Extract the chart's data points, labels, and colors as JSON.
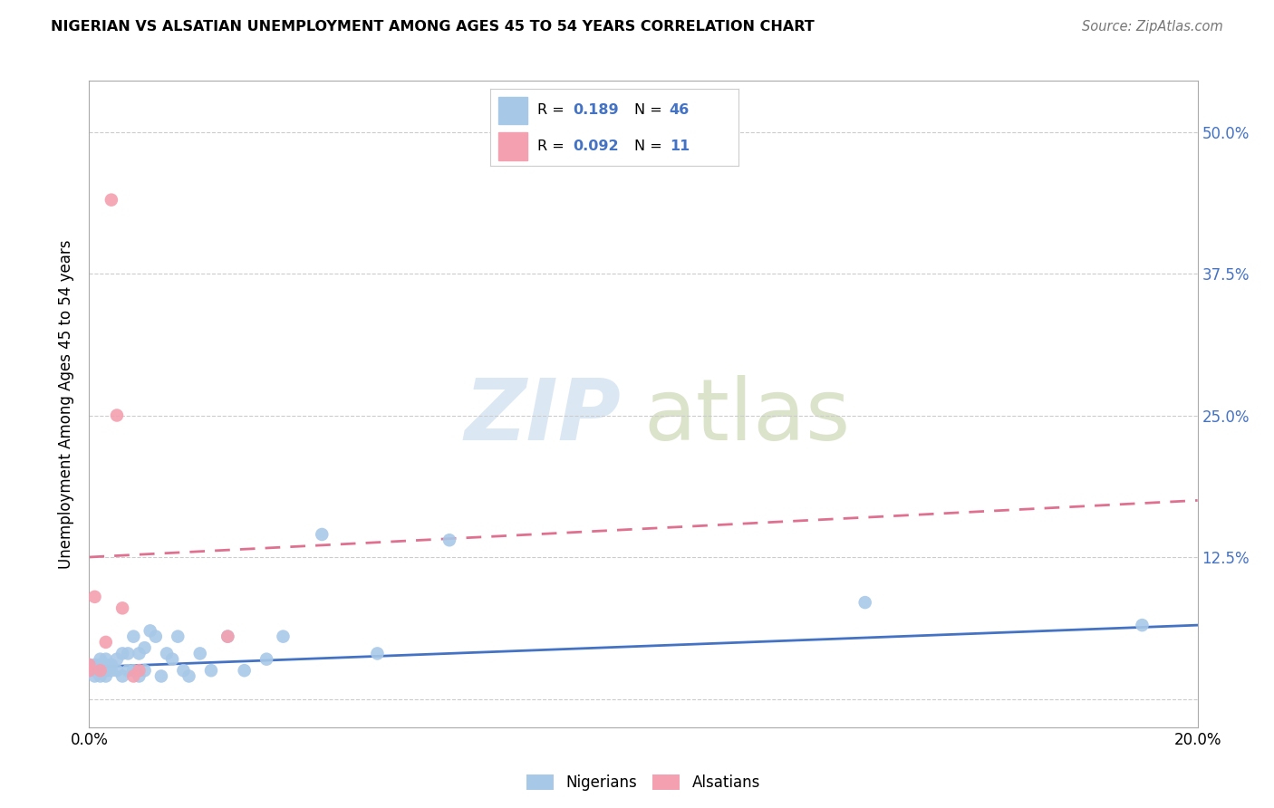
{
  "title": "NIGERIAN VS ALSATIAN UNEMPLOYMENT AMONG AGES 45 TO 54 YEARS CORRELATION CHART",
  "source": "Source: ZipAtlas.com",
  "ylabel": "Unemployment Among Ages 45 to 54 years",
  "xlim": [
    0.0,
    0.2
  ],
  "ylim": [
    -0.025,
    0.545
  ],
  "yticks": [
    0.0,
    0.125,
    0.25,
    0.375,
    0.5
  ],
  "ytick_labels_right": [
    "",
    "12.5%",
    "25.0%",
    "37.5%",
    "50.0%"
  ],
  "xticks": [
    0.0,
    0.025,
    0.05,
    0.075,
    0.1,
    0.125,
    0.15,
    0.175,
    0.2
  ],
  "xtick_labels": [
    "0.0%",
    "",
    "",
    "",
    "",
    "",
    "",
    "",
    "20.0%"
  ],
  "nigerian_color": "#a8c8e8",
  "alsatian_color": "#f4a0b0",
  "nigerian_line_color": "#4472c4",
  "alsatian_line_color": "#e07090",
  "nigerian_R": "0.189",
  "nigerian_N": "46",
  "alsatian_R": "0.092",
  "alsatian_N": "11",
  "nigerian_x": [
    0.0,
    0.0,
    0.001,
    0.001,
    0.001,
    0.002,
    0.002,
    0.002,
    0.002,
    0.003,
    0.003,
    0.003,
    0.003,
    0.004,
    0.004,
    0.005,
    0.005,
    0.006,
    0.006,
    0.007,
    0.007,
    0.008,
    0.008,
    0.009,
    0.009,
    0.01,
    0.01,
    0.011,
    0.012,
    0.013,
    0.014,
    0.015,
    0.016,
    0.017,
    0.018,
    0.02,
    0.022,
    0.025,
    0.028,
    0.032,
    0.035,
    0.042,
    0.052,
    0.065,
    0.14,
    0.19
  ],
  "nigerian_y": [
    0.025,
    0.03,
    0.02,
    0.025,
    0.03,
    0.02,
    0.025,
    0.03,
    0.035,
    0.02,
    0.025,
    0.03,
    0.035,
    0.025,
    0.03,
    0.025,
    0.035,
    0.02,
    0.04,
    0.025,
    0.04,
    0.025,
    0.055,
    0.02,
    0.04,
    0.025,
    0.045,
    0.06,
    0.055,
    0.02,
    0.04,
    0.035,
    0.055,
    0.025,
    0.02,
    0.04,
    0.025,
    0.055,
    0.025,
    0.035,
    0.055,
    0.145,
    0.04,
    0.14,
    0.085,
    0.065
  ],
  "alsatian_x": [
    0.0,
    0.0,
    0.001,
    0.002,
    0.003,
    0.004,
    0.005,
    0.006,
    0.008,
    0.009,
    0.025
  ],
  "alsatian_y": [
    0.025,
    0.03,
    0.09,
    0.025,
    0.05,
    0.44,
    0.25,
    0.08,
    0.02,
    0.025,
    0.055
  ],
  "nigerian_trend_x": [
    0.0,
    0.2
  ],
  "nigerian_trend_y": [
    0.028,
    0.065
  ],
  "alsatian_trend_x": [
    0.0,
    0.2
  ],
  "alsatian_trend_y": [
    0.125,
    0.175
  ],
  "background_color": "#ffffff",
  "grid_color": "#cccccc",
  "legend_items": [
    {
      "label": "R = ",
      "value": "0.189",
      "n_label": "N = ",
      "n_value": "46",
      "color": "#a8c8e8"
    },
    {
      "label": "R = ",
      "value": "0.092",
      "n_label": "N = ",
      "n_value": "11",
      "color": "#f4a0b0"
    }
  ],
  "bottom_legend": [
    "Nigerians",
    "Alsatians"
  ],
  "bottom_legend_colors": [
    "#a8c8e8",
    "#f4a0b0"
  ]
}
